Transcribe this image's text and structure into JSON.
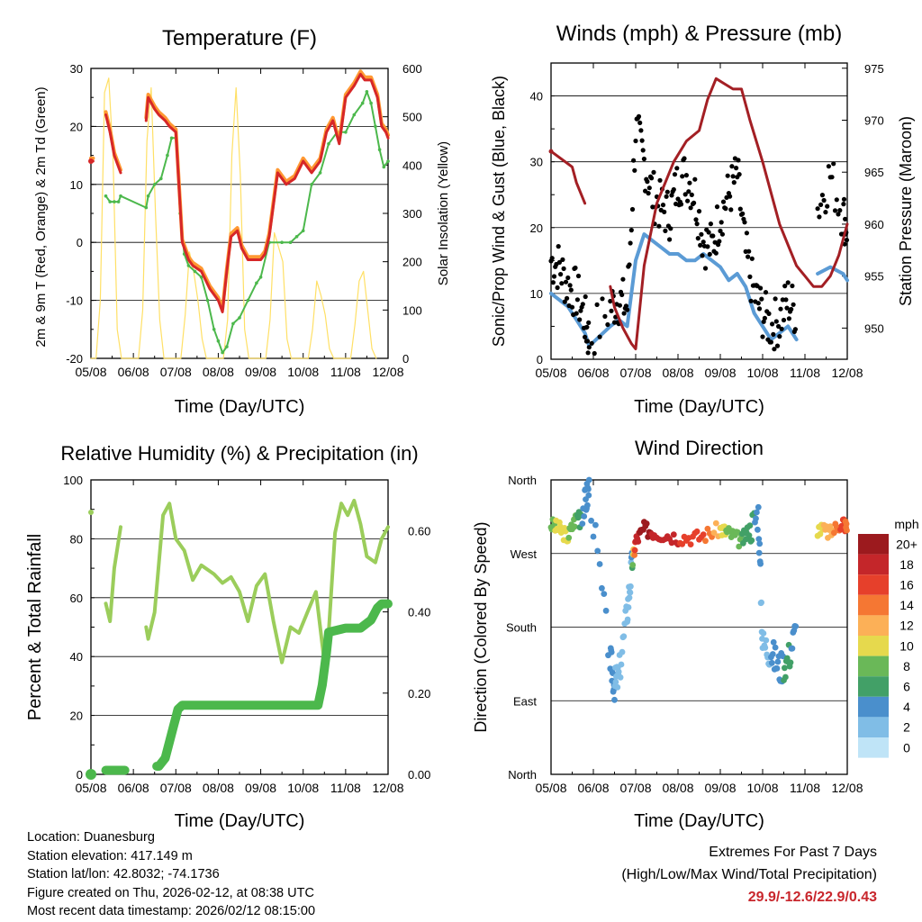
{
  "station": {
    "location": "Location: Duanesburg",
    "elevation": "Station elevation: 417.149 m",
    "latlon": "Station lat/lon: 42.8032; -74.1736",
    "created": "Figure created on Thu, 2026-02-12, at 08:38 UTC",
    "recent": "Most recent data timestamp: 2026/02/12 08:15:00"
  },
  "extremes": {
    "title": "Extremes For Past 7 Days",
    "subtitle": "(High/Low/Max Wind/Total Precipitation)",
    "values": "29.9/-12.6/22.9/0.43",
    "color": "#c8262c"
  },
  "x_ticks": [
    "05/08",
    "06/08",
    "07/08",
    "08/08",
    "09/08",
    "10/08",
    "11/08",
    "12/08"
  ],
  "chart_data": [
    {
      "type": "line",
      "title": "Temperature (F)",
      "xlabel": "Time (Day/UTC)",
      "ylabel": "2m & 9m T (Red, Orange) & 2m Td (Green)",
      "ylabel_right": "Solar Insolation (Yellow)",
      "x_range": [
        5,
        12
      ],
      "ylim": [
        -20,
        30
      ],
      "yticks": [
        -20,
        -10,
        0,
        10,
        20,
        30
      ],
      "y2lim": [
        0,
        600
      ],
      "y2ticks": [
        0,
        100,
        200,
        300,
        400,
        500,
        600
      ],
      "colors": {
        "t2m": "#d62728",
        "t9m": "#ff9933",
        "td": "#4cb84c",
        "solar": "#ffe066"
      },
      "series": [
        {
          "name": "2m T",
          "axis": "left",
          "x": [
            5.0,
            5.05,
            5.3,
            5.35,
            5.45,
            5.55,
            5.7,
            5.75,
            6.3,
            6.35,
            6.5,
            6.6,
            6.75,
            6.85,
            7.0,
            7.15,
            7.3,
            7.4,
            7.6,
            7.8,
            8.0,
            8.1,
            8.2,
            8.3,
            8.45,
            8.55,
            8.7,
            8.85,
            9.0,
            9.1,
            9.2,
            9.4,
            9.6,
            9.8,
            10.0,
            10.2,
            10.4,
            10.55,
            10.7,
            10.85,
            11.0,
            11.2,
            11.35,
            11.45,
            11.6,
            11.75,
            11.85,
            11.95,
            12.0
          ],
          "y": [
            14,
            14,
            null,
            22,
            19,
            15,
            12,
            null,
            21,
            25,
            23,
            22,
            21,
            20,
            19,
            0,
            -3,
            -4,
            -5,
            -8,
            -10,
            -12,
            -5,
            1,
            2,
            -1,
            -3,
            -3,
            -3,
            -2,
            1,
            12,
            10,
            11,
            14,
            12,
            14,
            19,
            21,
            17,
            25,
            27,
            29,
            28,
            28,
            25,
            20,
            19,
            18
          ]
        },
        {
          "name": "9m T",
          "axis": "left",
          "x": [
            5.0,
            5.05,
            5.3,
            5.35,
            5.45,
            5.55,
            5.7,
            5.75,
            6.3,
            6.35,
            6.5,
            6.6,
            6.75,
            6.85,
            7.0,
            7.15,
            7.3,
            7.4,
            7.6,
            7.8,
            8.0,
            8.1,
            8.2,
            8.3,
            8.45,
            8.55,
            8.7,
            8.85,
            9.0,
            9.1,
            9.2,
            9.4,
            9.6,
            9.8,
            10.0,
            10.2,
            10.4,
            10.55,
            10.7,
            10.85,
            11.0,
            11.2,
            11.35,
            11.45,
            11.6,
            11.75,
            11.85,
            11.95,
            12.0
          ],
          "y": [
            14.5,
            14.5,
            null,
            22.5,
            19.5,
            15.5,
            12.5,
            null,
            21.5,
            25.5,
            23.5,
            22.5,
            21.5,
            20.5,
            19.5,
            0.5,
            -2.5,
            -3.5,
            -4.5,
            -7.5,
            -9.5,
            -11.5,
            -4.5,
            1.5,
            2.5,
            -0.5,
            -2.5,
            -2.5,
            -2.5,
            -1.5,
            1.5,
            12.5,
            10.5,
            11.5,
            14.5,
            12.5,
            14.5,
            19.5,
            21.5,
            17.5,
            25.5,
            27.5,
            29.5,
            28.5,
            28.5,
            25.5,
            20.5,
            19.5,
            18.5
          ]
        },
        {
          "name": "2m Td",
          "axis": "left",
          "x": [
            5.3,
            5.35,
            5.45,
            5.55,
            5.65,
            5.7,
            6.3,
            6.35,
            6.5,
            6.65,
            6.8,
            6.9,
            7.0,
            7.1,
            7.2,
            7.3,
            7.45,
            7.6,
            7.75,
            7.9,
            8.0,
            8.1,
            8.2,
            8.35,
            8.5,
            8.7,
            8.9,
            9.0,
            9.2,
            9.5,
            9.7,
            9.85,
            10.0,
            10.2,
            10.4,
            10.6,
            10.8,
            11.0,
            11.2,
            11.4,
            11.5,
            11.6,
            11.7,
            11.8,
            11.9,
            12.0
          ],
          "y": [
            null,
            8,
            7,
            7,
            7,
            8,
            6,
            8,
            10,
            11,
            15,
            18,
            18,
            5,
            -2,
            -4,
            -5,
            -6,
            -10,
            -15,
            -17,
            -19,
            -18,
            -14,
            -13,
            -10,
            -7,
            -6,
            0,
            0,
            0,
            1,
            2,
            10,
            12,
            17,
            19,
            19,
            22,
            24,
            26,
            24,
            20,
            16,
            13,
            14
          ]
        },
        {
          "name": "Solar Insolation",
          "axis": "right",
          "x": [
            5.0,
            5.12,
            5.22,
            5.32,
            5.42,
            5.52,
            5.62,
            5.72,
            6.12,
            6.22,
            6.32,
            6.42,
            6.52,
            6.62,
            6.72,
            7.12,
            7.22,
            7.32,
            7.42,
            7.52,
            7.62,
            7.72,
            8.12,
            8.22,
            8.32,
            8.42,
            8.52,
            8.62,
            8.72,
            9.12,
            9.22,
            9.32,
            9.42,
            9.52,
            9.62,
            9.72,
            10.12,
            10.22,
            10.32,
            10.42,
            10.52,
            10.62,
            10.72,
            11.12,
            11.22,
            11.32,
            11.42,
            11.52,
            11.62,
            11.72
          ],
          "y": [
            0,
            0,
            120,
            550,
            580,
            420,
            60,
            0,
            0,
            100,
            450,
            560,
            300,
            80,
            0,
            0,
            90,
            220,
            180,
            120,
            40,
            0,
            0,
            80,
            420,
            560,
            380,
            60,
            0,
            0,
            80,
            260,
            230,
            200,
            40,
            0,
            0,
            60,
            160,
            130,
            90,
            20,
            0,
            0,
            70,
            160,
            180,
            100,
            20,
            0
          ]
        }
      ]
    },
    {
      "type": "scatter",
      "title": "Winds (mph) & Pressure (mb)",
      "xlabel": "Time (Day/UTC)",
      "ylabel": "Sonic/Prop Wind & Gust (Blue, Black)",
      "ylabel_right": "Station Pressure (Maroon)",
      "x_range": [
        5,
        12
      ],
      "ylim": [
        0,
        45
      ],
      "yticks": [
        0,
        10,
        20,
        30,
        40
      ],
      "y2lim": [
        947,
        975.5
      ],
      "y2ticks": [
        950,
        955,
        960,
        965,
        970,
        975
      ],
      "colors": {
        "wind": "#5b9bd5",
        "gust": "#000000",
        "pressure": "#a31f24"
      },
      "series": [
        {
          "name": "Sonic/Prop Wind",
          "axis": "left",
          "x": [
            5.0,
            5.2,
            5.4,
            5.6,
            5.8,
            5.9,
            6.4,
            6.6,
            6.8,
            7.0,
            7.2,
            7.4,
            7.6,
            7.8,
            8.0,
            8.2,
            8.4,
            8.6,
            8.8,
            9.0,
            9.2,
            9.4,
            9.6,
            9.8,
            10.0,
            10.2,
            10.4,
            10.6,
            10.8,
            11.0,
            11.3,
            11.6,
            11.9,
            12.0
          ],
          "y": [
            10,
            9,
            8,
            6,
            4,
            2,
            5,
            6,
            5,
            15,
            19,
            18,
            17,
            16,
            16,
            15,
            15,
            16,
            15,
            14,
            12,
            13,
            11,
            7,
            5,
            3,
            4,
            5,
            3,
            null,
            13,
            14,
            13,
            12
          ]
        },
        {
          "name": "Gust",
          "axis": "left",
          "x": [
            5.0,
            5.2,
            5.4,
            5.6,
            5.8,
            5.9,
            6.4,
            6.6,
            6.8,
            7.0,
            7.2,
            7.4,
            7.6,
            7.8,
            8.0,
            8.2,
            8.4,
            8.6,
            8.8,
            9.0,
            9.2,
            9.4,
            9.6,
            9.8,
            10.0,
            10.2,
            10.4,
            10.6,
            10.8,
            11.0,
            11.3,
            11.6,
            11.9,
            12.0
          ],
          "y": [
            15,
            14,
            11,
            10,
            6,
            3,
            8,
            9,
            8,
            35,
            30,
            25,
            23,
            22,
            27,
            28,
            25,
            18,
            17,
            22,
            25,
            28,
            16,
            10,
            7,
            5,
            6,
            9,
            7,
            null,
            23,
            28,
            22,
            20
          ]
        },
        {
          "name": "Station Pressure",
          "axis": "right",
          "x": [
            5.0,
            5.5,
            5.6,
            5.7,
            5.8,
            6.4,
            6.5,
            6.7,
            6.9,
            7.0,
            7.2,
            7.5,
            7.9,
            8.2,
            8.5,
            8.7,
            8.9,
            9.1,
            9.3,
            9.5,
            9.7,
            10.0,
            10.2,
            10.4,
            10.6,
            10.8,
            11.0,
            11.2,
            11.4,
            11.6,
            11.8,
            12.0
          ],
          "y": [
            967,
            965.5,
            964,
            963,
            962,
            954,
            952,
            950,
            948.5,
            948,
            956,
            962,
            966,
            968,
            969,
            972,
            974,
            973.5,
            973,
            973,
            970,
            966,
            963,
            960,
            958,
            956,
            955,
            954,
            954,
            955,
            957,
            960
          ]
        }
      ]
    },
    {
      "type": "line",
      "title": "Relative Humidity (%) & Precipitation (in)",
      "xlabel": "Time (Day/UTC)",
      "ylabel": "Percent & Total Rainfall",
      "x_range": [
        5,
        12
      ],
      "ylim": [
        0,
        100
      ],
      "yticks": [
        0,
        20,
        40,
        60,
        80,
        100
      ],
      "y2lim": [
        0,
        0.725
      ],
      "y2ticks": [
        "0.00",
        "0.20",
        "0.40",
        "0.60"
      ],
      "colors": {
        "rh": "#9bcd5b",
        "precip": "#4cb84c"
      },
      "series": [
        {
          "name": "Relative Humidity",
          "axis": "left",
          "x": [
            5.0,
            5.05,
            5.3,
            5.35,
            5.45,
            5.55,
            5.7,
            5.75,
            6.3,
            6.35,
            6.5,
            6.7,
            6.85,
            7.0,
            7.2,
            7.4,
            7.6,
            7.9,
            8.1,
            8.3,
            8.5,
            8.7,
            8.9,
            9.1,
            9.3,
            9.5,
            9.7,
            9.9,
            10.1,
            10.3,
            10.5,
            10.6,
            10.75,
            10.9,
            11.05,
            11.2,
            11.35,
            11.5,
            11.7,
            11.85,
            12.0
          ],
          "y": [
            89,
            null,
            null,
            58,
            52,
            70,
            84,
            null,
            50,
            46,
            55,
            88,
            92,
            80,
            76,
            66,
            71,
            68,
            65,
            67,
            62,
            52,
            64,
            68,
            52,
            38,
            50,
            48,
            55,
            62,
            38,
            48,
            82,
            92,
            88,
            93,
            85,
            74,
            72,
            80,
            84
          ]
        },
        {
          "name": "Total Precipitation",
          "axis": "right",
          "x": [
            5.0,
            5.05,
            5.35,
            5.8,
            6.2,
            6.55,
            6.6,
            6.75,
            6.95,
            7.0,
            7.05,
            7.15,
            7.5,
            8.0,
            8.5,
            9.0,
            9.5,
            10.0,
            10.35,
            10.45,
            10.55,
            10.6,
            11.0,
            11.35,
            11.6,
            11.75,
            11.85,
            12.0
          ],
          "y": [
            0.0,
            null,
            0.01,
            0.01,
            null,
            0.02,
            0.02,
            0.04,
            0.12,
            0.14,
            0.16,
            0.17,
            0.17,
            0.17,
            0.17,
            0.17,
            0.17,
            0.17,
            0.17,
            0.22,
            0.3,
            0.35,
            0.36,
            0.36,
            0.38,
            0.41,
            0.42,
            0.42
          ]
        }
      ]
    },
    {
      "type": "scatter",
      "title": "Wind Direction",
      "xlabel": "Time (Day/UTC)",
      "ylabel": "Direction (Colored By Speed)",
      "x_range": [
        5,
        12
      ],
      "ylim": [
        0,
        360
      ],
      "ytick_labels": [
        "North",
        "East",
        "South",
        "West",
        "North"
      ],
      "colorbar": {
        "title": "mph",
        "labels": [
          "0",
          "2",
          "4",
          "6",
          "8",
          "10",
          "12",
          "14",
          "16",
          "18",
          "20+"
        ],
        "colors": [
          "#bfe4f7",
          "#80bde6",
          "#4a8fcc",
          "#42a067",
          "#6ab858",
          "#e6d94d",
          "#fcb057",
          "#f57733",
          "#e6402b",
          "#c4262a",
          "#9c1a1e"
        ]
      },
      "series": [
        {
          "name": "Direction",
          "x": [
            5.0,
            5.2,
            5.4,
            5.6,
            5.8,
            5.9,
            6.4,
            6.5,
            6.6,
            6.8,
            6.9,
            7.0,
            7.2,
            7.5,
            8.0,
            8.5,
            9.0,
            9.2,
            9.5,
            9.7,
            9.9,
            10.0,
            10.2,
            10.4,
            10.6,
            10.8,
            11.0,
            11.3,
            11.6,
            11.9,
            12.0
          ],
          "y": [
            305,
            300,
            290,
            315,
            330,
            350,
            140,
            110,
            120,
            200,
            250,
            285,
            300,
            295,
            290,
            290,
            300,
            295,
            285,
            300,
            320,
            160,
            150,
            130,
            140,
            180,
            null,
            300,
            295,
            310,
            300
          ],
          "speed": [
            8,
            10,
            9,
            7,
            4,
            3,
            4,
            3,
            2,
            2,
            3,
            18,
            20,
            18,
            17,
            16,
            11,
            8,
            7,
            6,
            4,
            2,
            3,
            4,
            6,
            3,
            null,
            10,
            12,
            16,
            14
          ]
        }
      ]
    }
  ]
}
